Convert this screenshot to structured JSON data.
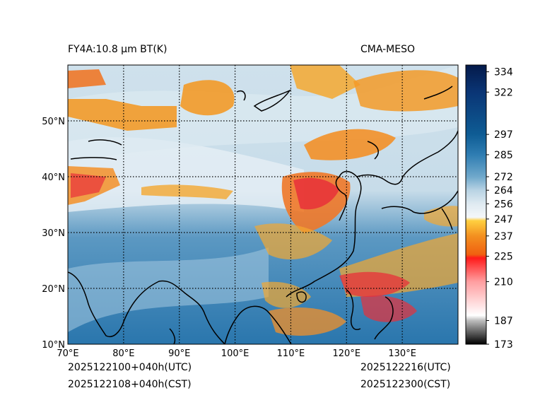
{
  "title_left": "FY4A:10.8 µm BT(K)",
  "title_right": "CMA-MESO",
  "footer": {
    "init_utc": "2025122100+040h(UTC)",
    "init_cst": "2025122108+040h(CST)",
    "valid_utc": "2025122216(UTC)",
    "valid_cst": "2025122300(CST)"
  },
  "map": {
    "lon_range": [
      70,
      140
    ],
    "lat_range": [
      10,
      60
    ],
    "lon_ticks": [
      {
        "value": 70,
        "label": "70°E"
      },
      {
        "value": 80,
        "label": "80°E"
      },
      {
        "value": 90,
        "label": "90°E"
      },
      {
        "value": 100,
        "label": "100°E"
      },
      {
        "value": 110,
        "label": "110°E"
      },
      {
        "value": 120,
        "label": "120°E"
      },
      {
        "value": 130,
        "label": "130°E"
      }
    ],
    "lat_ticks": [
      {
        "value": 10,
        "label": "10°N"
      },
      {
        "value": 20,
        "label": "20°N"
      },
      {
        "value": 30,
        "label": "30°N"
      },
      {
        "value": 40,
        "label": "40°N"
      },
      {
        "value": 50,
        "label": "50°N"
      }
    ],
    "gridline_style": "dotted",
    "colors": {
      "ocean_warm": "#2f7fb4",
      "land_mid": "#8fbcd6",
      "cold_cloud": "#f0a020",
      "very_cold": "#e8303a",
      "high_cloud": "#e9f1f6"
    }
  },
  "colorbar": {
    "range": [
      173,
      338
    ],
    "tick_values": [
      173,
      187,
      210,
      225,
      237,
      247,
      256,
      264,
      272,
      285,
      297,
      322,
      334
    ],
    "tick_labels": [
      "173",
      "187",
      "210",
      "225",
      "237",
      "247",
      "256",
      "264",
      "272",
      "285",
      "297",
      "322",
      "334"
    ],
    "stops": [
      {
        "value": 173,
        "color": "#000000"
      },
      {
        "value": 187,
        "color": "#bdbdbd"
      },
      {
        "value": 190,
        "color": "#ffffff"
      },
      {
        "value": 210,
        "color": "#ff9ea0"
      },
      {
        "value": 224,
        "color": "#ff1a1a"
      },
      {
        "value": 226,
        "color": "#f06010"
      },
      {
        "value": 237,
        "color": "#f39020"
      },
      {
        "value": 246,
        "color": "#ffd040"
      },
      {
        "value": 248,
        "color": "#f4f7fa"
      },
      {
        "value": 256,
        "color": "#dfeaf1"
      },
      {
        "value": 264,
        "color": "#b8d3e4"
      },
      {
        "value": 272,
        "color": "#6fa8cb"
      },
      {
        "value": 285,
        "color": "#2f7db2"
      },
      {
        "value": 297,
        "color": "#0e5c94"
      },
      {
        "value": 322,
        "color": "#0a3575"
      },
      {
        "value": 338,
        "color": "#041a4a"
      }
    ]
  }
}
